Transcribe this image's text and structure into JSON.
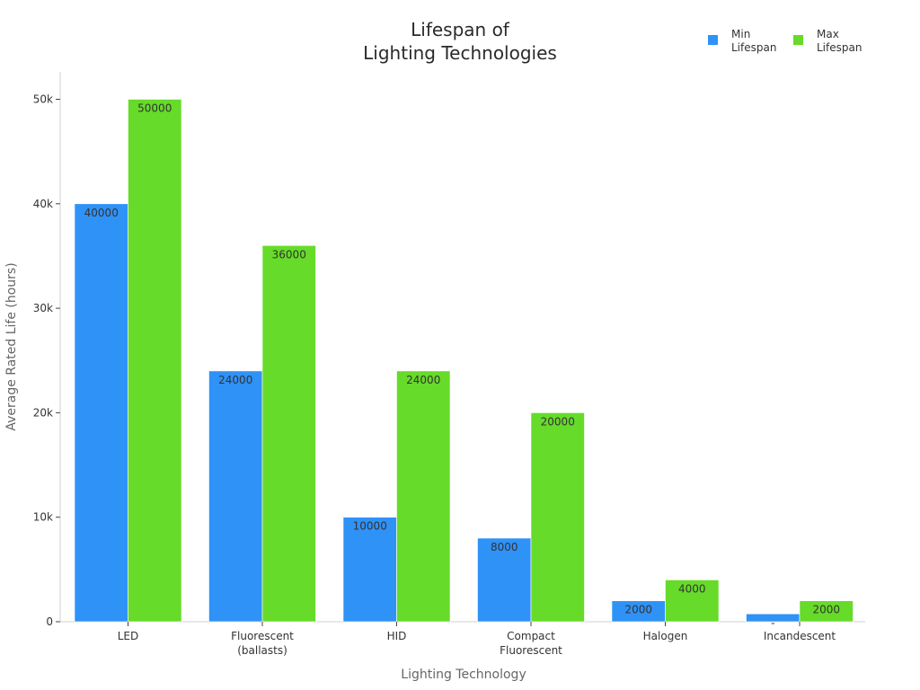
{
  "chart_data": {
    "type": "bar",
    "title": [
      "Lifespan of",
      "Lighting Technologies"
    ],
    "xlabel": "Lighting Technology",
    "ylabel": "Average Rated Life (hours)",
    "categories": [
      [
        "LED"
      ],
      [
        "Fluorescent",
        "(ballasts)"
      ],
      [
        "HID"
      ],
      [
        "Compact",
        "Fluorescent"
      ],
      [
        "Halogen"
      ],
      [
        "Incandescent"
      ]
    ],
    "series": [
      {
        "name": [
          "Min",
          "Lifespan"
        ],
        "color": "#2f92f7",
        "values": [
          40000,
          24000,
          10000,
          8000,
          2000,
          750
        ],
        "labels": [
          "40000",
          "24000",
          "10000",
          "8000",
          "2000",
          "-"
        ]
      },
      {
        "name": [
          "Max",
          "Lifespan"
        ],
        "color": "#66db29",
        "values": [
          50000,
          36000,
          24000,
          20000,
          4000,
          2000
        ],
        "labels": [
          "50000",
          "36000",
          "24000",
          "20000",
          "4000",
          "2000"
        ]
      }
    ],
    "ylim": [
      0,
      52500
    ],
    "yticks": [
      0,
      10000,
      20000,
      30000,
      40000,
      50000
    ],
    "ytick_labels": [
      "0",
      "10k",
      "20k",
      "30k",
      "40k",
      "50k"
    ],
    "legend_position": "top-right",
    "grid": false
  }
}
